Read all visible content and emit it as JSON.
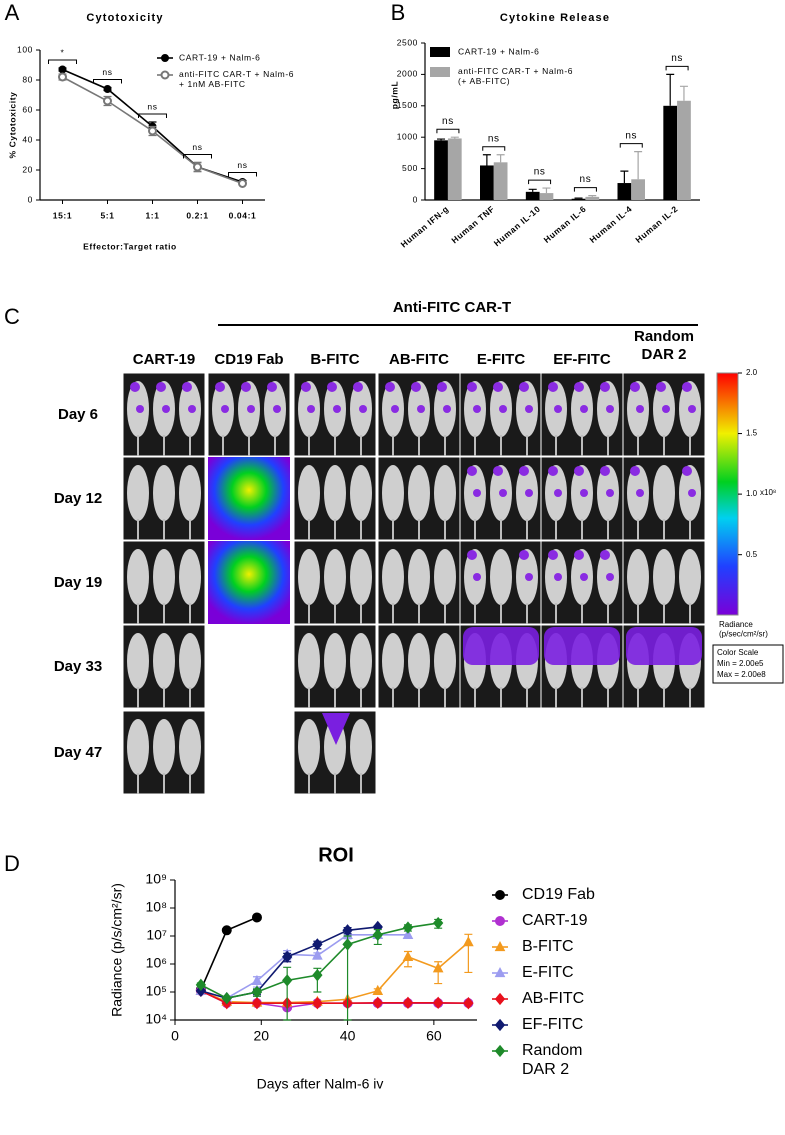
{
  "chart_data": [
    {
      "type": "line",
      "panel_label": "A",
      "title": "Cytotoxicity",
      "x_label": "Effector:Target ratio",
      "y_label": "% Cytotoxicity",
      "categories": [
        "15:1",
        "5:1",
        "1:1",
        "0.2:1",
        "0.04:1"
      ],
      "ylim": [
        0,
        100
      ],
      "yticks": [
        0,
        20,
        40,
        60,
        80,
        100
      ],
      "series": [
        {
          "name": "CART-19 + Nalm-6",
          "color": "#000000",
          "marker": "circle",
          "marker_fill": "filled",
          "values": [
            87,
            74,
            49,
            22,
            12
          ],
          "errors": [
            1,
            1,
            3,
            3,
            1
          ]
        },
        {
          "name": "anti-FITC CAR-T + Nalm-6\n+ 1nM AB-FITC",
          "color": "#777777",
          "marker": "circle",
          "marker_fill": "open",
          "values": [
            82,
            66,
            46,
            22,
            11
          ],
          "errors": [
            2,
            3,
            3,
            3,
            1
          ]
        }
      ],
      "annotations": [
        "*",
        "ns",
        "ns",
        "ns",
        "ns"
      ]
    },
    {
      "type": "bar",
      "panel_label": "B",
      "title": "Cytokine Release",
      "y_label": "pg/mL",
      "categories": [
        "Human IFN-g",
        "Human TNF",
        "Human IL-10",
        "Human IL-6",
        "Human IL-4",
        "Human IL-2"
      ],
      "ylim": [
        0,
        2500
      ],
      "yticks": [
        0,
        500,
        1000,
        1500,
        2000,
        2500
      ],
      "series": [
        {
          "name": "CART-19 + Nalm-6",
          "color": "#000000",
          "values": [
            950,
            550,
            130,
            20,
            270,
            1500
          ],
          "errors": [
            20,
            170,
            40,
            10,
            190,
            500
          ]
        },
        {
          "name": "anti-FITC CAR-T + Nalm-6\n(+ AB-FITC)",
          "color": "#a6a6a6",
          "values": [
            980,
            600,
            110,
            50,
            330,
            1580
          ],
          "errors": [
            20,
            120,
            80,
            20,
            440,
            230
          ]
        }
      ],
      "annotations": [
        "ns",
        "ns",
        "ns",
        "ns",
        "ns",
        "ns"
      ]
    },
    {
      "type": "line",
      "panel_label": "D",
      "title": "ROI",
      "x_label": "Days after Nalm-6 iv",
      "y_label": "Radiance (p/s/cm²/sr)",
      "log_y": true,
      "xlim": [
        0,
        70
      ],
      "xticks": [
        0,
        20,
        40,
        60
      ],
      "ylim": [
        10000,
        1000000000
      ],
      "yticks": [
        {
          "value": 10000,
          "label": "10⁴"
        },
        {
          "value": 100000,
          "label": "10⁵"
        },
        {
          "value": 1000000,
          "label": "10⁶"
        },
        {
          "value": 10000000,
          "label": "10⁷"
        },
        {
          "value": 100000000,
          "label": "10⁸"
        },
        {
          "value": 1000000000,
          "label": "10⁹"
        }
      ],
      "series": [
        {
          "name": "CD19 Fab",
          "color": "#000000",
          "marker": "circle",
          "x": [
            6,
            12,
            19
          ],
          "values": [
            120000,
            16000000,
            46000000
          ]
        },
        {
          "name": "CART-19",
          "color": "#b030d0",
          "marker": "circle",
          "x": [
            6,
            12,
            19,
            26,
            33,
            40,
            47,
            54,
            61,
            68
          ],
          "values": [
            110000,
            40000,
            40000,
            28000,
            40000,
            40000,
            40000,
            40000,
            40000,
            40000
          ]
        },
        {
          "name": "B-FITC",
          "color": "#f39a1e",
          "marker": "triangle",
          "x": [
            6,
            12,
            19,
            26,
            33,
            40,
            47,
            54,
            61,
            68
          ],
          "values": [
            110000,
            45000,
            42000,
            42000,
            45000,
            55000,
            110000,
            1800000,
            700000,
            6000000
          ],
          "errors": [
            0,
            0,
            0,
            0,
            0,
            0,
            20000,
            1000000,
            500000,
            5500000
          ]
        },
        {
          "name": "E-FITC",
          "color": "#9c9cf0",
          "marker": "triangle",
          "x": [
            6,
            12,
            19,
            26,
            33,
            40,
            47,
            54
          ],
          "values": [
            110000,
            60000,
            250000,
            2200000,
            2000000,
            11000000,
            11000000,
            11000000
          ],
          "errors": [
            0,
            0,
            100000,
            800000,
            500000,
            3000000,
            0,
            0
          ]
        },
        {
          "name": "AB-FITC",
          "color": "#e8101c",
          "marker": "diamond",
          "x": [
            6,
            12,
            19,
            26,
            33,
            40,
            47,
            54,
            61,
            68
          ],
          "values": [
            110000,
            40000,
            40000,
            40000,
            40000,
            40000,
            41000,
            41000,
            41000,
            40000
          ]
        },
        {
          "name": "EF-FITC",
          "color": "#101a70",
          "marker": "diamond",
          "x": [
            6,
            12,
            19,
            26,
            33,
            40,
            47
          ],
          "values": [
            110000,
            60000,
            100000,
            1800000,
            5000000,
            16000000,
            21000000
          ],
          "errors": [
            0,
            0,
            20000,
            600000,
            1500000,
            4000000,
            2000000
          ]
        },
        {
          "name": "Random\nDAR 2",
          "color": "#1e8a2a",
          "marker": "diamond",
          "x": [
            6,
            12,
            19,
            26,
            33,
            40,
            47,
            54,
            61
          ],
          "values": [
            180000,
            60000,
            100000,
            260000,
            400000,
            5000000,
            11000000,
            20000000,
            29000000
          ],
          "errors": [
            30000,
            0,
            30000,
            500000,
            300000,
            5000000,
            6000000,
            5000000,
            10000000
          ]
        }
      ]
    }
  ],
  "imaging": {
    "panel_label": "C",
    "group_label": "Anti-FITC CAR-T",
    "columns": [
      "CART-19",
      "CD19 Fab",
      "B-FITC",
      "AB-FITC",
      "E-FITC",
      "EF-FITC",
      "Random\nDAR 2"
    ],
    "rows": [
      "Day 6",
      "Day 12",
      "Day 19",
      "Day 33",
      "Day 47"
    ],
    "colorbar": {
      "lim": [
        0.002,
        2
      ],
      "ticks": [
        {
          "value": 2,
          "label": "2.0"
        },
        {
          "value": 1.5,
          "label": "1.5"
        },
        {
          "value": 1,
          "label": "1.0"
        },
        {
          "value": 0.5,
          "label": "0.5"
        }
      ],
      "multiplier": "x10⁸",
      "title": "Radiance\n(p/sec/cm²/sr)",
      "box": [
        "Color Scale",
        "Min = 2.00e5",
        "Max = 2.00e8"
      ]
    }
  }
}
